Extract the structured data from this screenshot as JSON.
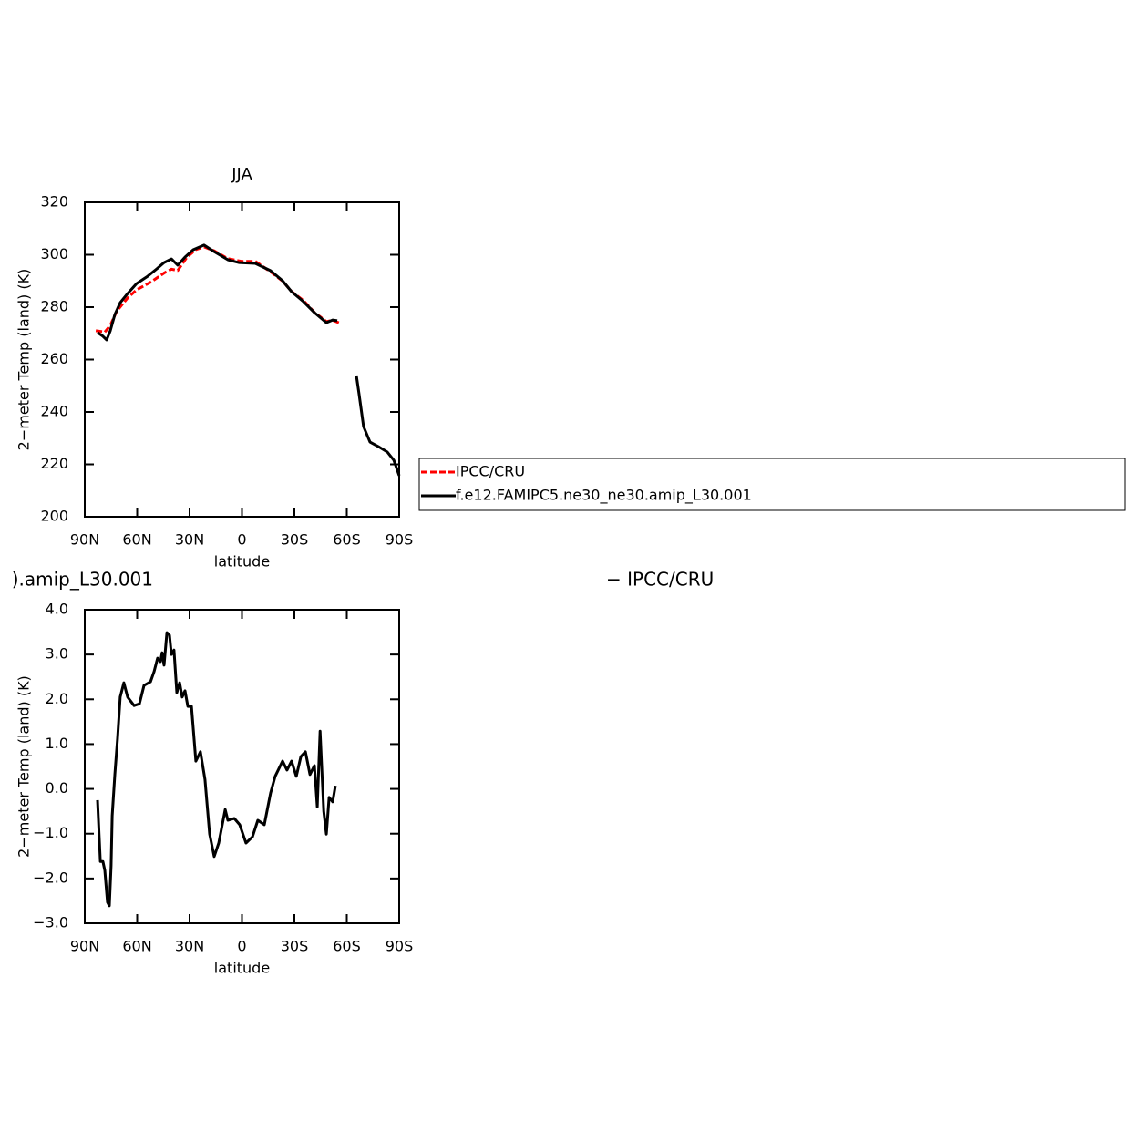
{
  "chart_data": [
    {
      "type": "line",
      "title": "JJA",
      "x_label": "latitude",
      "y_label": "2−meter Temp (land) (K)",
      "xlim": [
        90,
        -90
      ],
      "ylim": [
        200,
        320
      ],
      "xticks": [
        {
          "value": 90,
          "label": "90N"
        },
        {
          "value": 60,
          "label": "60N"
        },
        {
          "value": 30,
          "label": "30N"
        },
        0,
        {
          "value": -30,
          "label": "30S"
        },
        {
          "value": -60,
          "label": "60S"
        },
        {
          "value": -90,
          "label": "90S"
        }
      ],
      "yticks": [
        200,
        220,
        240,
        260,
        280,
        300,
        320
      ],
      "legend": true,
      "series": [
        {
          "name": "IPCC/CRU",
          "color": "#ff0000",
          "line_style": "dashed",
          "x": [
            83.7,
            78.5,
            75.4,
            71.7,
            65.5,
            60.3,
            52.4,
            44.6,
            40.4,
            36.8,
            31.6,
            26.4,
            21.7,
            15.9,
            8.1,
            0.3,
            -7.6,
            -16.4,
            -23.2,
            -28.4,
            -35.2,
            -41.5,
            -48.3,
            -51.9,
            -55.6
          ],
          "values": [
            271,
            270.5,
            273,
            278.5,
            283.5,
            286.6,
            289.5,
            293,
            294.5,
            294,
            299,
            302,
            303,
            301.5,
            298.5,
            297.5,
            297.5,
            293.5,
            290,
            286,
            282.5,
            278,
            274.5,
            275,
            274
          ]
        },
        {
          "name": "f.e12.FAMIPC5.ne30_ne30.amip_L30.001",
          "color": "#000000",
          "line_style": "solid",
          "x": [
            82.7,
            79.6,
            77.5,
            75.4,
            72.8,
            69.7,
            65.5,
            60.3,
            54,
            48.8,
            44.6,
            40.4,
            36.8,
            32.6,
            27.9,
            21.7,
            15.9,
            8.1,
            1.8,
            -7.6,
            -16.4,
            -23.2,
            -28.4,
            -34.7,
            -41.5,
            -48.3,
            -51.9,
            -54.5,
            -60,
            -65.5,
            -67,
            -69.6,
            -73.3,
            -78,
            -83.2,
            -86.9,
            -90
          ],
          "values": [
            270.3,
            268.9,
            267.5,
            271,
            277.2,
            281.7,
            285.2,
            289,
            291.8,
            294.6,
            297,
            298.4,
            296,
            299.1,
            301.9,
            303.7,
            301.2,
            298.1,
            297,
            296.7,
            293.9,
            290.1,
            285.9,
            282.4,
            277.9,
            274.1,
            275.1,
            274.8,
            null,
            253.9,
            247,
            234.4,
            228.5,
            226.8,
            224.7,
            221.6,
            215.7
          ]
        }
      ]
    },
    {
      "type": "line",
      "title_left": ").amip_L30.001",
      "title_right": "− IPCC/CRU",
      "x_label": "latitude",
      "y_label": "2−meter Temp (land) (K)",
      "xlim": [
        90,
        -90
      ],
      "ylim": [
        -3,
        4
      ],
      "xticks": [
        {
          "value": 90,
          "label": "90N"
        },
        {
          "value": 60,
          "label": "60N"
        },
        {
          "value": 30,
          "label": "30N"
        },
        0,
        {
          "value": -30,
          "label": "30S"
        },
        {
          "value": -60,
          "label": "60S"
        },
        {
          "value": -90,
          "label": "90S"
        }
      ],
      "yticks": [
        {
          "value": -3,
          "label": "−3.0"
        },
        {
          "value": -2,
          "label": "−2.0"
        },
        {
          "value": -1,
          "label": "−1.0"
        },
        {
          "value": 0,
          "label": "0.0"
        },
        {
          "value": 1,
          "label": "1.0"
        },
        {
          "value": 2,
          "label": "2.0"
        },
        {
          "value": 3,
          "label": "3.0"
        },
        {
          "value": 4,
          "label": "4.0"
        }
      ],
      "legend": false,
      "series": [
        {
          "color": "#000000",
          "line_style": "solid",
          "x": [
            82.7,
            81.1,
            79.6,
            78.5,
            77,
            75.9,
            74.9,
            74.3,
            72.8,
            71.2,
            69.7,
            67.6,
            65.5,
            61.8,
            58.7,
            56.1,
            52.4,
            50.3,
            48.3,
            46.7,
            45.7,
            44.6,
            43,
            41.5,
            40.4,
            38.9,
            37.3,
            35.7,
            34.2,
            32.6,
            31,
            28.9,
            26.4,
            23.8,
            21.2,
            18.5,
            15.9,
            13.3,
            9.6,
            8.1,
            4.4,
            1.3,
            -2.3,
            -6,
            -9.1,
            -12.8,
            -16.4,
            -19,
            -23.2,
            -25.8,
            -28.4,
            -31.1,
            -33.7,
            -36.3,
            -38.9,
            -41.5,
            -43.1,
            -44.7,
            -46.8,
            -48.3,
            -49.9,
            -51.9,
            -53.5
          ],
          "values": [
            -0.25,
            -1.62,
            -1.62,
            -1.82,
            -2.53,
            -2.61,
            -1.72,
            -0.6,
            0.32,
            1.13,
            2.05,
            2.37,
            2.05,
            1.86,
            1.9,
            2.31,
            2.39,
            2.62,
            2.92,
            2.84,
            3.04,
            2.76,
            3.49,
            3.43,
            3.0,
            3.1,
            2.15,
            2.37,
            2.05,
            2.19,
            1.84,
            1.84,
            0.62,
            0.83,
            0.21,
            -1.01,
            -1.51,
            -1.21,
            -0.46,
            -0.7,
            -0.66,
            -0.8,
            -1.21,
            -1.07,
            -0.7,
            -0.8,
            -0.09,
            0.28,
            0.62,
            0.42,
            0.62,
            0.28,
            0.72,
            0.83,
            0.32,
            0.52,
            -0.4,
            1.29,
            -0.5,
            -1.01,
            -0.19,
            -0.29,
            0.07
          ]
        }
      ]
    }
  ]
}
